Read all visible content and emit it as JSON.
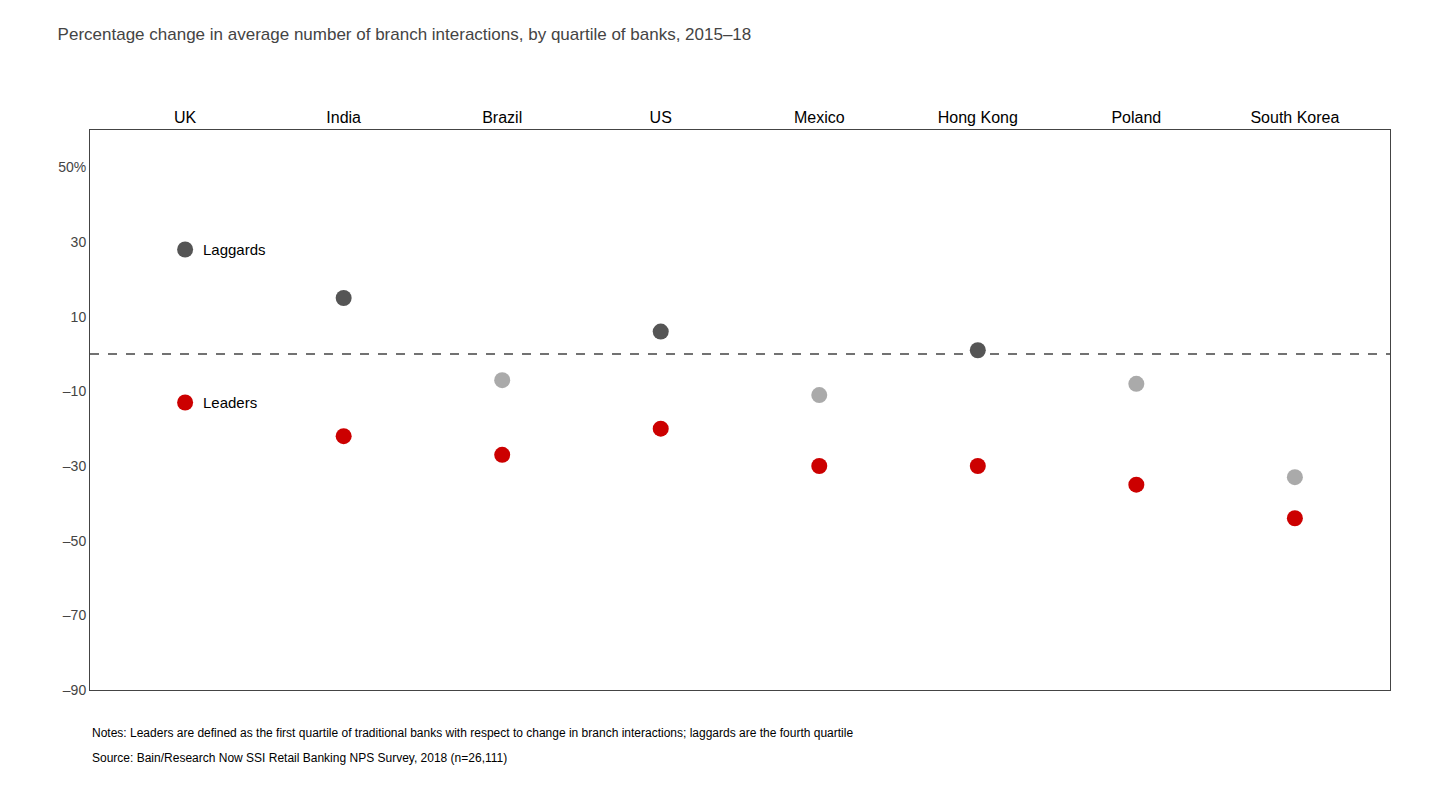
{
  "chart_data": {
    "type": "dot",
    "title": "Percentage change in average number of branch interactions, by quartile of banks, 2015–18",
    "categories": [
      "UK",
      "India",
      "Brazil",
      "US",
      "Mexico",
      "Hong Kong",
      "Poland",
      "South Korea"
    ],
    "series": [
      {
        "name": "Laggards",
        "values": [
          28,
          15,
          -7,
          6,
          -11,
          1,
          -8,
          -33
        ],
        "colors": [
          "#555555",
          "#555555",
          "#AAAAAA",
          "#555555",
          "#AAAAAA",
          "#555555",
          "#AAAAAA",
          "#AAAAAA"
        ]
      },
      {
        "name": "Leaders",
        "values": [
          -13,
          -22,
          -27,
          -20,
          -30,
          -30,
          -35,
          -44
        ],
        "color": "#CC0000"
      }
    ],
    "ylim": [
      -90,
      60
    ],
    "yticks": [
      {
        "value": -90,
        "label": "–90"
      },
      {
        "value": -70,
        "label": "–70"
      },
      {
        "value": -50,
        "label": "–50"
      },
      {
        "value": -30,
        "label": "–30"
      },
      {
        "value": -10,
        "label": "–10"
      },
      10,
      30,
      {
        "value": 50,
        "label": "50%"
      }
    ],
    "grid": false,
    "marker": "circle",
    "reference_line": 0,
    "annotations": [
      "Notes: Leaders are defined as the first quartile of traditional banks with respect to change in branch interactions; laggards are the fourth quartile",
      "Source: Bain/Research Now SSI Retail Banking NPS Survey, 2018 (n=26,111)"
    ]
  }
}
